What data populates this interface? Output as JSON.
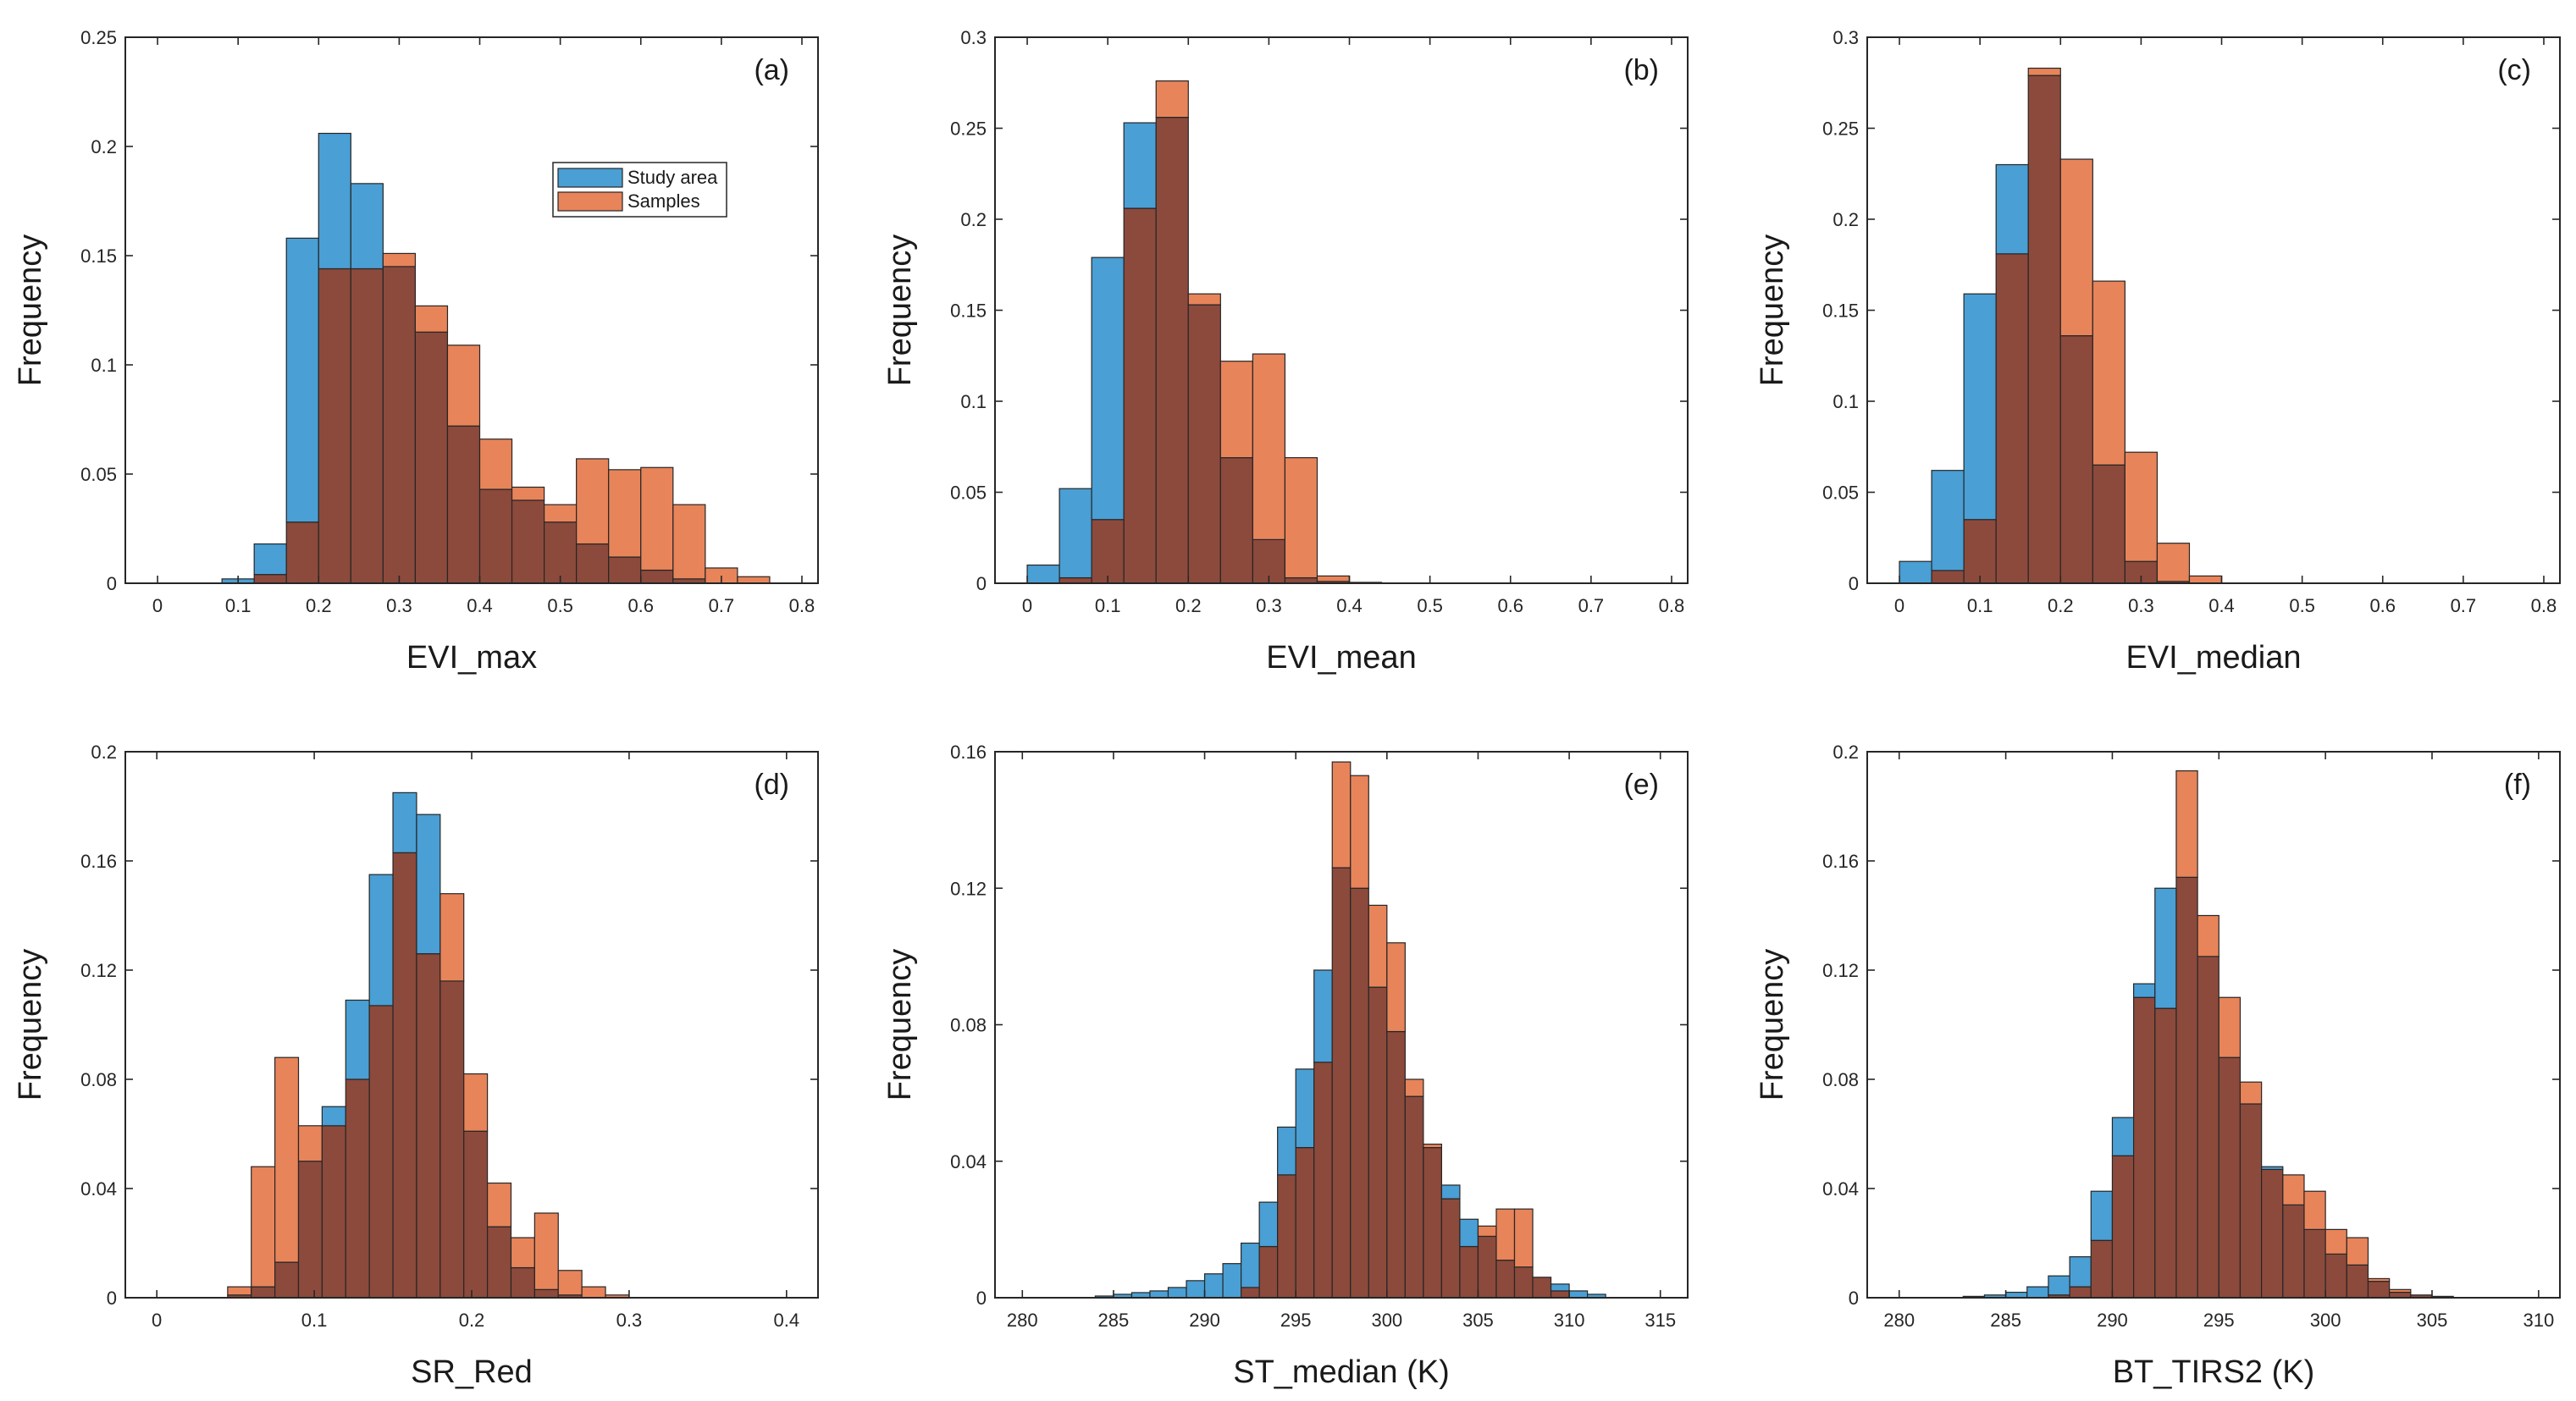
{
  "legend": {
    "entries": [
      {
        "name": "Study area",
        "color": "#4a9fd4"
      },
      {
        "name": "Samples",
        "color": "#e8845a"
      }
    ]
  },
  "colors": {
    "study_area": "#4a9fd4",
    "samples": "#e8845a",
    "overlap": "#8c4a3c"
  },
  "chart_data": [
    {
      "type": "histogram",
      "tag": "(a)",
      "xlabel": "EVI_max",
      "ylabel": "Frequency",
      "xlim": [
        -0.04,
        0.82
      ],
      "ylim": [
        0,
        0.25
      ],
      "xticks": [
        0,
        0.1,
        0.2,
        0.3,
        0.4,
        0.5,
        0.6,
        0.7,
        0.8
      ],
      "xtick_labels": [
        "0",
        "0.1",
        "0.2",
        "0.3",
        "0.4",
        "0.5",
        "0.6",
        "0.7",
        "0.8"
      ],
      "yticks": [
        0,
        0.05,
        0.1,
        0.15,
        0.2,
        0.25
      ],
      "ytick_labels": [
        "0",
        "0.05",
        "0.1",
        "0.15",
        "0.2",
        "0.25"
      ],
      "bin_edges": [
        0.08,
        0.12,
        0.16,
        0.2,
        0.24,
        0.28,
        0.32,
        0.36,
        0.4,
        0.44,
        0.48,
        0.52,
        0.56,
        0.6,
        0.64,
        0.68,
        0.72,
        0.76
      ],
      "legend_position": "upper-center",
      "series": [
        {
          "name": "Study area",
          "values": [
            0.002,
            0.018,
            0.158,
            0.206,
            0.183,
            0.145,
            0.115,
            0.072,
            0.043,
            0.038,
            0.028,
            0.018,
            0.012,
            0.006,
            0.002,
            0,
            0
          ]
        },
        {
          "name": "Samples",
          "values": [
            0,
            0.004,
            0.028,
            0.144,
            0.144,
            0.151,
            0.127,
            0.109,
            0.066,
            0.044,
            0.036,
            0.057,
            0.052,
            0.053,
            0.036,
            0.007,
            0.003
          ]
        }
      ]
    },
    {
      "type": "histogram",
      "tag": "(b)",
      "xlabel": "EVI_mean",
      "ylabel": "Frequency",
      "xlim": [
        -0.04,
        0.82
      ],
      "ylim": [
        0,
        0.3
      ],
      "xticks": [
        0,
        0.1,
        0.2,
        0.3,
        0.4,
        0.5,
        0.6,
        0.7,
        0.8
      ],
      "xtick_labels": [
        "0",
        "0.1",
        "0.2",
        "0.3",
        "0.4",
        "0.5",
        "0.6",
        "0.7",
        "0.8"
      ],
      "yticks": [
        0,
        0.05,
        0.1,
        0.15,
        0.2,
        0.25,
        0.3
      ],
      "ytick_labels": [
        "0",
        "0.05",
        "0.1",
        "0.15",
        "0.2",
        "0.25",
        "0.3"
      ],
      "bin_edges": [
        0,
        0.04,
        0.08,
        0.12,
        0.16,
        0.2,
        0.24,
        0.28,
        0.32,
        0.36,
        0.4,
        0.44,
        0.48
      ],
      "series": [
        {
          "name": "Study area",
          "values": [
            0.01,
            0.052,
            0.179,
            0.253,
            0.256,
            0.153,
            0.069,
            0.024,
            0.003,
            0.001,
            0.0005,
            0
          ]
        },
        {
          "name": "Samples",
          "values": [
            0,
            0.003,
            0.035,
            0.206,
            0.276,
            0.159,
            0.122,
            0.126,
            0.069,
            0.004,
            0,
            0
          ]
        }
      ]
    },
    {
      "type": "histogram",
      "tag": "(c)",
      "xlabel": "EVI_median",
      "ylabel": "Frequency",
      "xlim": [
        -0.04,
        0.82
      ],
      "ylim": [
        0,
        0.3
      ],
      "xticks": [
        0,
        0.1,
        0.2,
        0.3,
        0.4,
        0.5,
        0.6,
        0.7,
        0.8
      ],
      "xtick_labels": [
        "0",
        "0.1",
        "0.2",
        "0.3",
        "0.4",
        "0.5",
        "0.6",
        "0.7",
        "0.8"
      ],
      "yticks": [
        0,
        0.05,
        0.1,
        0.15,
        0.2,
        0.25,
        0.3
      ],
      "ytick_labels": [
        "0",
        "0.05",
        "0.1",
        "0.15",
        "0.2",
        "0.25",
        "0.3"
      ],
      "bin_edges": [
        0,
        0.04,
        0.08,
        0.12,
        0.16,
        0.2,
        0.24,
        0.28,
        0.32,
        0.36,
        0.4
      ],
      "series": [
        {
          "name": "Study area",
          "values": [
            0.012,
            0.062,
            0.159,
            0.23,
            0.279,
            0.136,
            0.065,
            0.012,
            0.001,
            0
          ]
        },
        {
          "name": "Samples",
          "values": [
            0,
            0.007,
            0.035,
            0.181,
            0.283,
            0.233,
            0.166,
            0.072,
            0.022,
            0.004
          ]
        }
      ]
    },
    {
      "type": "histogram",
      "tag": "(d)",
      "xlabel": "SR_Red",
      "ylabel": "Frequency",
      "xlim": [
        -0.02,
        0.42
      ],
      "ylim": [
        0,
        0.2
      ],
      "xticks": [
        0,
        0.1,
        0.2,
        0.3,
        0.4
      ],
      "xtick_labels": [
        "0",
        "0.1",
        "0.2",
        "0.3",
        "0.4"
      ],
      "yticks": [
        0,
        0.04,
        0.08,
        0.12,
        0.16,
        0.2
      ],
      "ytick_labels": [
        "0",
        "0.04",
        "0.08",
        "0.12",
        "0.16",
        "0.2"
      ],
      "bin_edges": [
        0.045,
        0.06,
        0.075,
        0.09,
        0.105,
        0.12,
        0.135,
        0.15,
        0.165,
        0.18,
        0.195,
        0.21,
        0.225,
        0.24,
        0.255,
        0.27,
        0.285,
        0.3
      ],
      "series": [
        {
          "name": "Study area",
          "values": [
            0.001,
            0.004,
            0.013,
            0.05,
            0.07,
            0.109,
            0.155,
            0.185,
            0.177,
            0.116,
            0.061,
            0.026,
            0.011,
            0.003,
            0.001,
            0,
            0
          ]
        },
        {
          "name": "Samples",
          "values": [
            0.004,
            0.048,
            0.088,
            0.063,
            0.063,
            0.08,
            0.107,
            0.163,
            0.126,
            0.148,
            0.082,
            0.042,
            0.022,
            0.031,
            0.01,
            0.004,
            0.001
          ]
        }
      ]
    },
    {
      "type": "histogram",
      "tag": "(e)",
      "xlabel": "ST_median (K)",
      "ylabel": "Frequency",
      "xlim": [
        278.5,
        316.5
      ],
      "ylim": [
        0,
        0.16
      ],
      "xticks": [
        280,
        285,
        290,
        295,
        300,
        305,
        310,
        315
      ],
      "xtick_labels": [
        "280",
        "285",
        "290",
        "295",
        "300",
        "305",
        "310",
        "315"
      ],
      "yticks": [
        0,
        0.04,
        0.08,
        0.12,
        0.16
      ],
      "ytick_labels": [
        "0",
        "0.04",
        "0.08",
        "0.12",
        "0.16"
      ],
      "bin_edges": [
        284,
        285,
        286,
        287,
        288,
        289,
        290,
        291,
        292,
        293,
        294,
        295,
        296,
        297,
        298,
        299,
        300,
        301,
        302,
        303,
        304,
        305,
        306,
        307,
        308,
        309,
        310,
        311,
        312
      ],
      "series": [
        {
          "name": "Study area",
          "values": [
            0.0005,
            0.001,
            0.0015,
            0.002,
            0.003,
            0.005,
            0.007,
            0.01,
            0.016,
            0.028,
            0.05,
            0.067,
            0.096,
            0.126,
            0.12,
            0.091,
            0.078,
            0.059,
            0.044,
            0.033,
            0.023,
            0.018,
            0.011,
            0.009,
            0.006,
            0.004,
            0.002,
            0.001
          ]
        },
        {
          "name": "Samples",
          "values": [
            0,
            0,
            0,
            0,
            0,
            0,
            0,
            0,
            0.003,
            0.015,
            0.036,
            0.044,
            0.069,
            0.157,
            0.153,
            0.115,
            0.104,
            0.064,
            0.045,
            0.029,
            0.015,
            0.021,
            0.026,
            0.026,
            0.006,
            0.002,
            0,
            0
          ]
        }
      ]
    },
    {
      "type": "histogram",
      "tag": "(f)",
      "xlabel": "BT_TIRS2 (K)",
      "ylabel": "Frequency",
      "xlim": [
        278.5,
        311
      ],
      "ylim": [
        0,
        0.2
      ],
      "xticks": [
        280,
        285,
        290,
        295,
        300,
        305,
        310
      ],
      "xtick_labels": [
        "280",
        "285",
        "290",
        "295",
        "300",
        "305",
        "310"
      ],
      "yticks": [
        0,
        0.04,
        0.08,
        0.12,
        0.16,
        0.2
      ],
      "ytick_labels": [
        "0",
        "0.04",
        "0.08",
        "0.12",
        "0.16",
        "0.2"
      ],
      "bin_edges": [
        283,
        284,
        285,
        286,
        287,
        288,
        289,
        290,
        291,
        292,
        293,
        294,
        295,
        296,
        297,
        298,
        299,
        300,
        301,
        302,
        303,
        304,
        305,
        306
      ],
      "series": [
        {
          "name": "Study area",
          "values": [
            0.0005,
            0.001,
            0.002,
            0.004,
            0.008,
            0.015,
            0.039,
            0.066,
            0.115,
            0.15,
            0.154,
            0.125,
            0.088,
            0.071,
            0.048,
            0.034,
            0.025,
            0.016,
            0.012,
            0.006,
            0.002,
            0.001,
            0.0005
          ]
        },
        {
          "name": "Samples",
          "values": [
            0,
            0,
            0,
            0,
            0.001,
            0.004,
            0.021,
            0.052,
            0.11,
            0.106,
            0.193,
            0.14,
            0.11,
            0.079,
            0.047,
            0.045,
            0.039,
            0.025,
            0.022,
            0.007,
            0.003,
            0.001,
            0
          ]
        }
      ]
    }
  ]
}
